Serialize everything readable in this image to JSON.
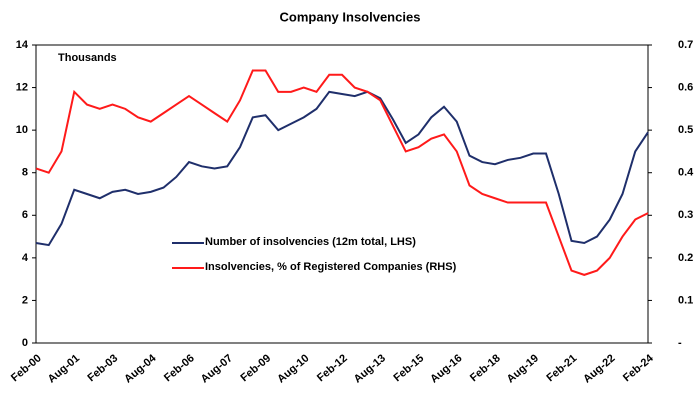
{
  "chart_data": {
    "type": "line",
    "title": "Company Insolvencies",
    "annotation": "Thousands",
    "categories": [
      "Feb-00",
      null,
      null,
      "Aug-01",
      null,
      null,
      "Feb-03",
      null,
      null,
      "Aug-04",
      null,
      null,
      "Feb-06",
      null,
      null,
      "Aug-07",
      null,
      null,
      "Feb-09",
      null,
      null,
      "Aug-10",
      null,
      null,
      "Feb-12",
      null,
      null,
      "Aug-13",
      null,
      null,
      "Feb-15",
      null,
      null,
      "Aug-16",
      null,
      null,
      "Feb-18",
      null,
      null,
      "Aug-19",
      null,
      null,
      "Feb-21",
      null,
      null,
      "Aug-22",
      null,
      null,
      "Feb-24"
    ],
    "series": [
      {
        "name": "Number of insolvencies (12m total, LHS)",
        "color": "#1f2f6b",
        "axis": "y",
        "values": [
          4.7,
          4.6,
          5.6,
          7.2,
          7.0,
          6.8,
          7.1,
          7.2,
          7.0,
          7.1,
          7.3,
          7.8,
          8.5,
          8.3,
          8.2,
          8.3,
          9.2,
          10.6,
          10.7,
          10.0,
          10.3,
          10.6,
          11.0,
          11.8,
          11.7,
          11.6,
          11.8,
          11.5,
          10.5,
          9.4,
          9.8,
          10.6,
          11.1,
          10.4,
          8.8,
          8.5,
          8.4,
          8.6,
          8.7,
          8.9,
          8.9,
          7.0,
          4.8,
          4.7,
          5.0,
          5.8,
          7.0,
          9.0,
          9.9
        ]
      },
      {
        "name": "Insolvencies, % of Registered Companies (RHS)",
        "color": "#ff1a1a",
        "axis": "y2",
        "values": [
          0.41,
          0.4,
          0.45,
          0.59,
          0.56,
          0.55,
          0.56,
          0.55,
          0.53,
          0.52,
          0.54,
          0.56,
          0.58,
          0.56,
          0.54,
          0.52,
          0.57,
          0.64,
          0.64,
          0.59,
          0.59,
          0.6,
          0.59,
          0.63,
          0.63,
          0.6,
          0.59,
          0.57,
          0.51,
          0.45,
          0.46,
          0.48,
          0.49,
          0.45,
          0.37,
          0.35,
          0.34,
          0.33,
          0.33,
          0.33,
          0.33,
          0.25,
          0.17,
          0.16,
          0.17,
          0.2,
          0.25,
          0.29,
          0.305
        ]
      }
    ],
    "ylim": [
      0,
      14
    ],
    "yticks": [
      0,
      2,
      4,
      6,
      8,
      10,
      12,
      14
    ],
    "y2lim": [
      0,
      0.7
    ],
    "y2ticks": [
      {
        "value": 0,
        "label": "-"
      },
      0.1,
      0.2,
      0.3,
      0.4,
      0.5,
      0.6,
      0.7
    ],
    "grid": false
  }
}
